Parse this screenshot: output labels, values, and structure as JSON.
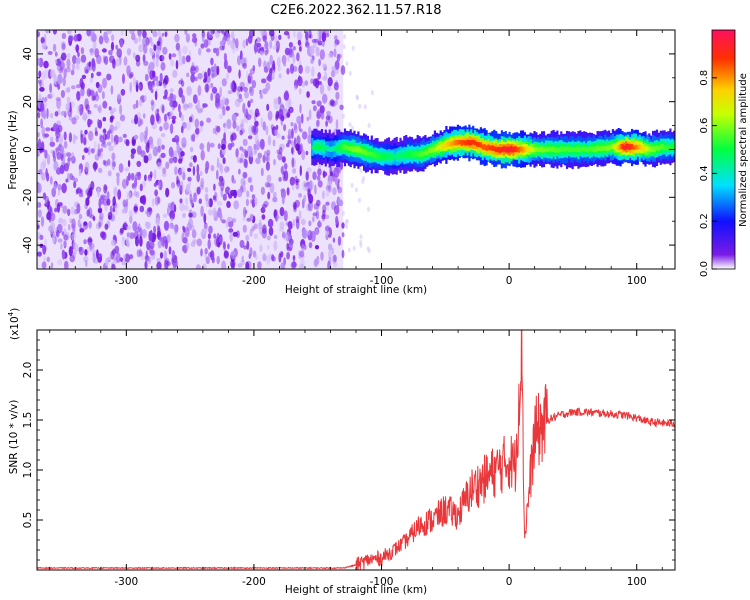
{
  "title": "C2E6.2022.362.11.57.R18",
  "colors": {
    "snr_line": "#e8383c",
    "noise_dots": "#7a1ce6"
  },
  "colorbar": {
    "label": "Normalized spectral amplitude",
    "ticks": [
      0.0,
      0.2,
      0.4,
      0.6,
      0.8
    ],
    "tick_labels": [
      "0.0",
      "0.2",
      "0.4",
      "0.6",
      "0.8"
    ],
    "range": [
      0,
      1
    ],
    "colormap": "rainbow"
  },
  "chart_data": [
    {
      "type": "heatmap",
      "xlabel": "Height of straight line (km)",
      "ylabel": "Frequency (Hz)",
      "xlim": [
        -370,
        130
      ],
      "ylim": [
        -50,
        50
      ],
      "xticks": [
        -300,
        -200,
        -100,
        0,
        100
      ],
      "xtick_labels": [
        "-300",
        "-200",
        "-100",
        "0",
        "100"
      ],
      "yticks": [
        -40,
        -20,
        0,
        20,
        40
      ],
      "ytick_labels": [
        "-40",
        "-20",
        "0",
        "20",
        "40"
      ],
      "noise_region_x": [
        -370,
        -130
      ],
      "signal_track": {
        "x": [
          -155,
          -150,
          -140,
          -130,
          -120,
          -110,
          -100,
          -90,
          -80,
          -70,
          -60,
          -50,
          -40,
          -30,
          -20,
          -10,
          0,
          10,
          20,
          40,
          60,
          80,
          90,
          100,
          110,
          120,
          130
        ],
        "frequency": [
          1,
          1,
          0,
          1,
          0,
          -2,
          -3,
          -3,
          -2,
          -2,
          0,
          2,
          3,
          3,
          1,
          0,
          0,
          0,
          0,
          0,
          0,
          1,
          1,
          1,
          0,
          1,
          1
        ],
        "peak_amplitude": [
          0.45,
          0.5,
          0.4,
          0.55,
          0.6,
          0.55,
          0.5,
          0.45,
          0.5,
          0.55,
          0.6,
          0.75,
          0.85,
          0.9,
          0.85,
          0.9,
          0.95,
          0.8,
          0.6,
          0.55,
          0.55,
          0.6,
          0.95,
          0.8,
          0.6,
          0.55,
          0.5
        ]
      }
    },
    {
      "type": "line",
      "xlabel": "Height of straight line (km)",
      "ylabel": "SNR (10 * v/v)",
      "y_multiplier": "(x10",
      "y_multiplier_exp": "4",
      "y_multiplier_close": ")",
      "xlim": [
        -370,
        130
      ],
      "ylim": [
        0,
        2.4
      ],
      "xticks": [
        -300,
        -200,
        -100,
        0,
        100
      ],
      "xtick_labels": [
        "-300",
        "-200",
        "-100",
        "0",
        "100"
      ],
      "yticks": [
        0.5,
        1.0,
        1.5,
        2.0
      ],
      "ytick_labels": [
        "0.5",
        "1.0",
        "1.5",
        "2.0"
      ],
      "series": [
        {
          "x": [
            -370,
            -300,
            -200,
            -130,
            -120,
            -110,
            -100,
            -90,
            -80,
            -70,
            -60,
            -50,
            -40,
            -30,
            -20,
            -10,
            0,
            5,
            10,
            12,
            20,
            30,
            40,
            50,
            60,
            70,
            80,
            90,
            100,
            110,
            120,
            130
          ],
          "values": [
            0.02,
            0.02,
            0.02,
            0.02,
            0.05,
            0.1,
            0.12,
            0.2,
            0.3,
            0.45,
            0.5,
            0.6,
            0.55,
            0.8,
            0.9,
            1.0,
            1.1,
            1.05,
            2.4,
            0.3,
            1.35,
            1.5,
            1.55,
            1.58,
            1.58,
            1.57,
            1.56,
            1.55,
            1.52,
            1.48,
            1.47,
            1.46
          ]
        }
      ]
    }
  ]
}
